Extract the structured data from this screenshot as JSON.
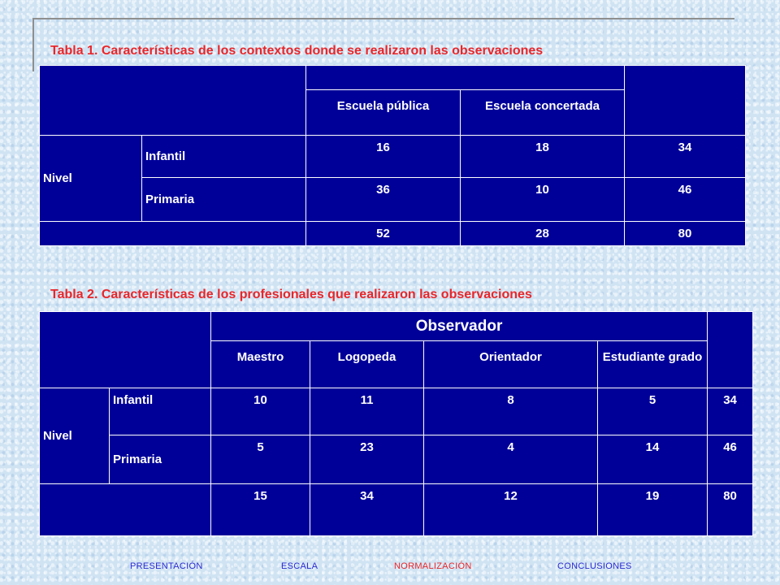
{
  "table1": {
    "caption": "Tabla 1. Características de los contextos donde se realizaron las observaciones",
    "col_headers": [
      "Escuela pública",
      "Escuela concertada"
    ],
    "row_group": "Nivel",
    "rows": [
      {
        "label": "Infantil",
        "values": [
          "16",
          "18",
          "34"
        ]
      },
      {
        "label": "Primaria",
        "values": [
          "36",
          "10",
          "46"
        ]
      }
    ],
    "totals": [
      "52",
      "28",
      "80"
    ]
  },
  "table2": {
    "caption": "Tabla 2. Características de los profesionales que realizaron las observaciones",
    "group_header": "Observador",
    "col_headers": [
      "Maestro",
      "Logopeda",
      "Orientador",
      "Estudiante grado"
    ],
    "row_group": "Nivel",
    "rows": [
      {
        "label": "Infantil",
        "values": [
          "10",
          "11",
          "8",
          "5",
          "34"
        ]
      },
      {
        "label": "Primaria",
        "values": [
          "5",
          "23",
          "4",
          "14",
          "46"
        ]
      }
    ],
    "totals": [
      "15",
      "34",
      "12",
      "19",
      "80"
    ]
  },
  "footer_nav": {
    "items": [
      "PRESENTACIÓN",
      "ESCALA",
      "NORMALIZACIÓN",
      "CONCLUSIONES"
    ],
    "active_index": 2
  },
  "colors": {
    "table_fill": "#000099",
    "caption": "#e8262a",
    "nav_link": "#2b2bd1",
    "nav_active": "#e8262a"
  }
}
